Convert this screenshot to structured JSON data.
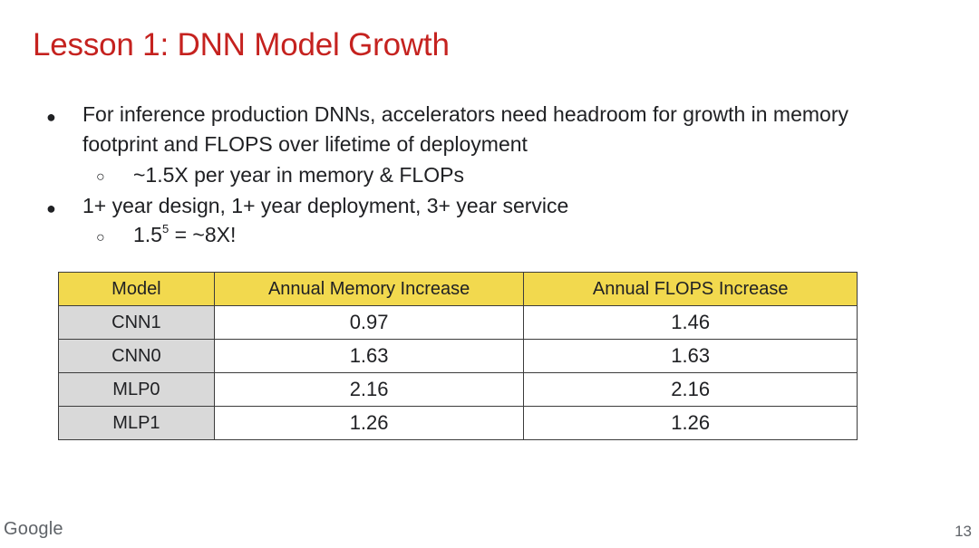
{
  "slide": {
    "title": "Lesson 1: DNN Model Growth",
    "bullets": [
      {
        "line1": "For inference production DNNs, accelerators need headroom for growth in memory",
        "line2": "footprint and FLOPS over lifetime of deployment",
        "sub": "~1.5X per year in memory & FLOPs"
      },
      {
        "line1": "1+ year design, 1+ year deployment, 3+ year service",
        "sub_base": "1.5",
        "sub_exp": "5",
        "sub_rest": " = ~8X!"
      }
    ],
    "bullet_glyph": "●",
    "sub_bullet_glyph": "○"
  },
  "table": {
    "headers": [
      "Model",
      "Annual Memory Increase",
      "Annual FLOPS Increase"
    ],
    "rows": [
      [
        "CNN1",
        "0.97",
        "1.46"
      ],
      [
        "CNN0",
        "1.63",
        "1.63"
      ],
      [
        "MLP0",
        "2.16",
        "2.16"
      ],
      [
        "MLP1",
        "1.26",
        "1.26"
      ]
    ],
    "header_color": "#f2d94e",
    "model_cell_color": "#d9d9d9"
  },
  "footer": {
    "logo": "Google",
    "page_number": "13"
  },
  "colors": {
    "title": "#c5221f"
  }
}
